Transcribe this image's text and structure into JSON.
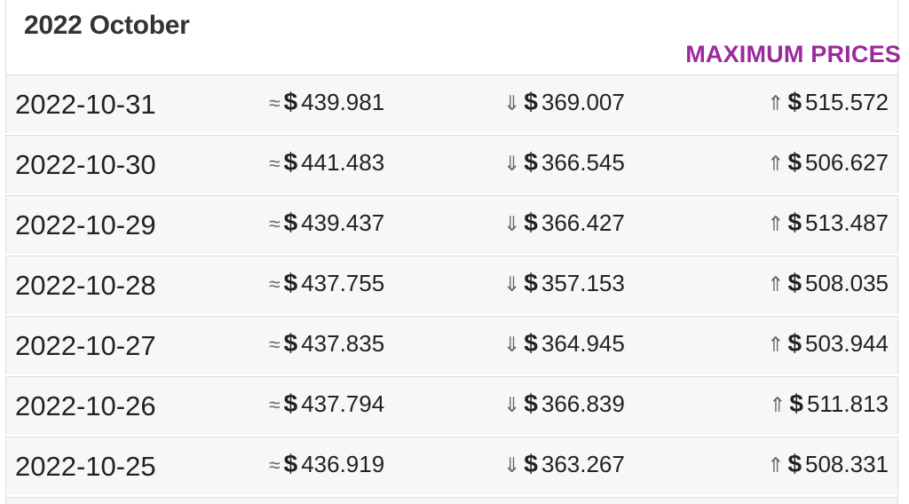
{
  "header": {
    "month_title": "2022 October",
    "column_title": "MAXIMUM PRICES"
  },
  "symbols": {
    "approx": "≈",
    "down": "⇓",
    "up": "⇑",
    "currency": "$"
  },
  "colors": {
    "accent": "#9b2a9b",
    "row_bg": "#f7f7f7",
    "border": "#dddddd"
  },
  "rows": [
    {
      "date": "2022-10-31",
      "avg": "439.981",
      "min": "369.007",
      "max": "515.572"
    },
    {
      "date": "2022-10-30",
      "avg": "441.483",
      "min": "366.545",
      "max": "506.627"
    },
    {
      "date": "2022-10-29",
      "avg": "439.437",
      "min": "366.427",
      "max": "513.487"
    },
    {
      "date": "2022-10-28",
      "avg": "437.755",
      "min": "357.153",
      "max": "508.035"
    },
    {
      "date": "2022-10-27",
      "avg": "437.835",
      "min": "364.945",
      "max": "503.944"
    },
    {
      "date": "2022-10-26",
      "avg": "437.794",
      "min": "366.839",
      "max": "511.813"
    },
    {
      "date": "2022-10-25",
      "avg": "436.919",
      "min": "363.267",
      "max": "508.331"
    }
  ]
}
